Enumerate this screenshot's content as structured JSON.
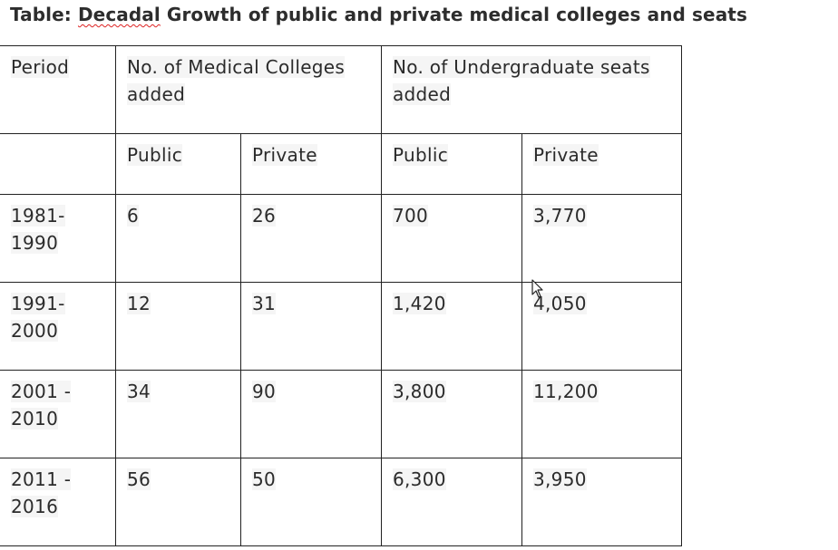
{
  "title_prefix": "Table: ",
  "title_word": "Decadal",
  "title_rest": " Growth of public and private medical colleges and seats",
  "headers": {
    "period": "Period",
    "colleges": "No. of Medical Colleges added",
    "seats": "No. of Undergraduate seats added",
    "public": "Public",
    "private": "Private"
  },
  "rows": [
    {
      "period": "1981-1990",
      "col_public": "6",
      "col_private": "26",
      "seat_public": "700",
      "seat_private": "3,770"
    },
    {
      "period": "1991-2000",
      "col_public": "12",
      "col_private": "31",
      "seat_public": "1,420",
      "seat_private": "4,050"
    },
    {
      "period": "2001 - 2010",
      "col_public": "34",
      "col_private": "90",
      "seat_public": "3,800",
      "seat_private": "11,200"
    },
    {
      "period": "2011 - 2016",
      "col_public": "56",
      "col_private": "50",
      "seat_public": "6,300",
      "seat_private": "3,950"
    }
  ],
  "icons": {
    "cursor": "mouse-pointer-icon"
  }
}
